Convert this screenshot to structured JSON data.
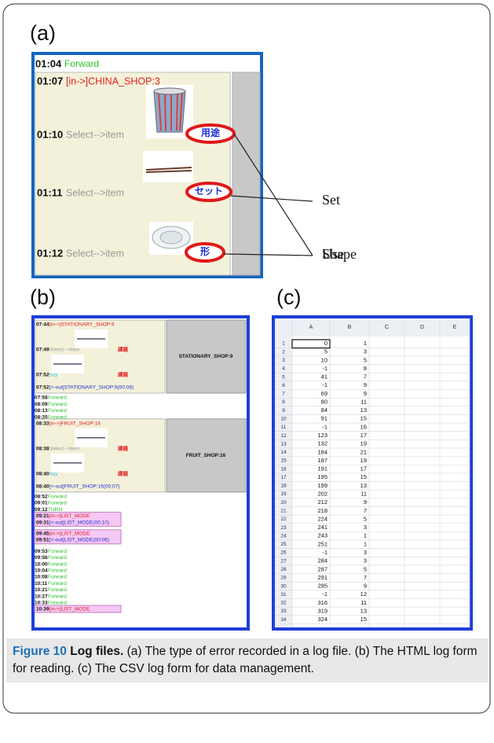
{
  "panels": [
    "(a)",
    "(b)",
    "(c)"
  ],
  "log_a": {
    "rows": [
      {
        "time": "01:04",
        "text": "Forward"
      }
    ],
    "shop": {
      "enter": {
        "time": "01:07",
        "text": "[in->]CHINA_SHOP:3"
      },
      "items": [
        {
          "time": "01:10",
          "text": "Select-->item",
          "tag": "用途"
        },
        {
          "time": "01:11",
          "text": "Select-->item",
          "tag": "セット"
        },
        {
          "time": "01:12",
          "text": "Select-->item",
          "tag": "形"
        }
      ]
    }
  },
  "annotations": [
    "Use",
    "Set",
    "Shape"
  ],
  "log_b": {
    "segments": [
      {
        "shop": {
          "name": "STATIONARY_SHOP:9",
          "enter": {
            "time": "07:44",
            "text": "[in->]STATIONARY_SHOP:9"
          },
          "items": [
            {
              "time": "07:49",
              "text": "Select-->item",
              "tag": "課題"
            },
            {
              "time": "07:52",
              "text": "buy",
              "tag": "課題"
            }
          ],
          "exit": {
            "time": "07:52",
            "text": "[<-out]STATIONARY_SHOP:9(00:08)"
          }
        }
      },
      {
        "moves": [
          {
            "time": "07:58",
            "text": "Forward"
          },
          {
            "time": "08:09",
            "text": "Forward"
          },
          {
            "time": "08:13",
            "text": "Forward"
          },
          {
            "time": "08:20",
            "text": "Forward"
          }
        ]
      },
      {
        "shop": {
          "name": "FRUIT_SHOP:16",
          "enter": {
            "time": "08:33",
            "text": "[in->]FRUIT_SHOP:16"
          },
          "items": [
            {
              "time": "08:38",
              "text": "Select-->item",
              "tag": "課題"
            },
            {
              "time": "08:40",
              "text": "buy",
              "tag": "課題"
            }
          ],
          "exit": {
            "time": "08:40",
            "text": "[<-out]FRUIT_SHOP:16(00:07)"
          }
        }
      },
      {
        "moves": [
          {
            "time": "08:52",
            "text": "Forward"
          },
          {
            "time": "09:01",
            "text": "Forward"
          },
          {
            "time": "09:12",
            "text": "TURN"
          }
        ]
      },
      {
        "list": {
          "enter": {
            "time": "09:21",
            "text": "[in->]LIST_MODE"
          },
          "exit": {
            "time": "09:31",
            "text": "[<-out]LIST_MODE(00:10)"
          }
        }
      },
      {
        "list": {
          "enter": {
            "time": "09:45",
            "text": "[in->]LIST_MODE"
          },
          "exit": {
            "time": "09:51",
            "text": "[<-out]LIST_MODE(00:06)"
          }
        }
      },
      {
        "moves": [
          {
            "time": "09:53",
            "text": "Forward"
          },
          {
            "time": "09:56",
            "text": "Forward"
          },
          {
            "time": "10:00",
            "text": "Forward"
          },
          {
            "time": "10:04",
            "text": "Forward"
          },
          {
            "time": "10:08",
            "text": "Forward"
          },
          {
            "time": "10:11",
            "text": "Forward"
          },
          {
            "time": "10:21",
            "text": "Forward"
          },
          {
            "time": "10:27",
            "text": "Forward"
          },
          {
            "time": "10:33",
            "text": "Forward"
          }
        ]
      },
      {
        "list": {
          "enter": {
            "time": "10:39",
            "text": "[in->]LIST_MODE"
          }
        }
      }
    ]
  },
  "csv": {
    "columns": [
      "A",
      "B",
      "C",
      "D",
      "E"
    ],
    "rows": [
      [
        1,
        0,
        1
      ],
      [
        2,
        5,
        3
      ],
      [
        3,
        10,
        5
      ],
      [
        4,
        -1,
        8
      ],
      [
        5,
        41,
        7
      ],
      [
        6,
        -1,
        9
      ],
      [
        7,
        69,
        9
      ],
      [
        8,
        80,
        11
      ],
      [
        9,
        84,
        13
      ],
      [
        10,
        91,
        15
      ],
      [
        11,
        -1,
        16
      ],
      [
        12,
        123,
        17
      ],
      [
        13,
        132,
        19
      ],
      [
        14,
        184,
        21
      ],
      [
        15,
        187,
        19
      ],
      [
        16,
        191,
        17
      ],
      [
        17,
        195,
        15
      ],
      [
        18,
        199,
        13
      ],
      [
        19,
        202,
        11
      ],
      [
        20,
        212,
        9
      ],
      [
        21,
        218,
        7
      ],
      [
        22,
        224,
        5
      ],
      [
        23,
        241,
        3
      ],
      [
        24,
        243,
        1
      ],
      [
        25,
        251,
        1
      ],
      [
        26,
        -1,
        3
      ],
      [
        27,
        284,
        3
      ],
      [
        28,
        287,
        5
      ],
      [
        29,
        291,
        7
      ],
      [
        30,
        295,
        9
      ],
      [
        31,
        -1,
        12
      ],
      [
        32,
        316,
        11
      ],
      [
        33,
        319,
        13
      ],
      [
        34,
        324,
        15
      ]
    ]
  },
  "caption": {
    "label": "Figure 10",
    "title": "Log files.",
    "items": [
      "(a) The type of error recorded in a log file.",
      "(b) The HTML log form for reading.",
      "(c) The CSV log form for data management."
    ]
  }
}
